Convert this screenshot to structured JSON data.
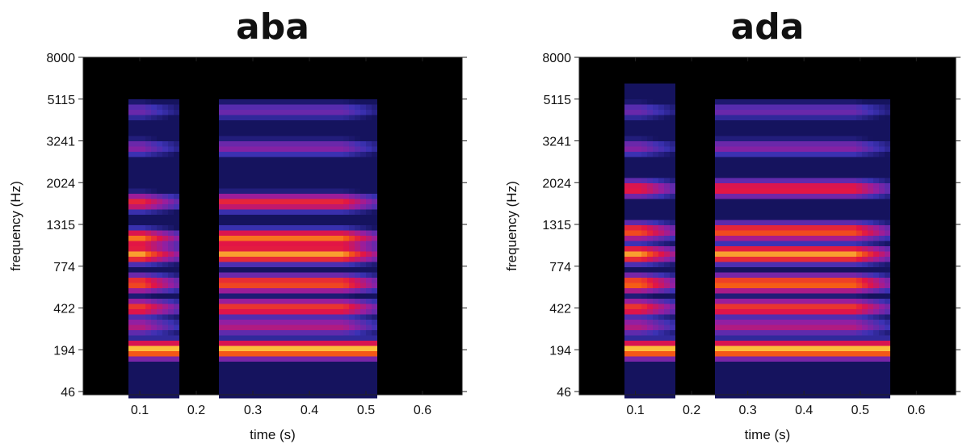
{
  "chart_data": [
    {
      "type": "heatmap",
      "title": "aba",
      "xlabel": "time (s)",
      "ylabel": "frequency (Hz)",
      "xlim": [
        0,
        0.67
      ],
      "xticks": [
        0.1,
        0.2,
        0.3,
        0.4,
        0.5,
        0.6
      ],
      "xtick_labels": [
        "0.1",
        "0.2",
        "0.3",
        "0.4",
        "0.5",
        "0.6"
      ],
      "ytick_labels": [
        "46",
        "194",
        "422",
        "774",
        "1315",
        "2024",
        "3241",
        "5115",
        "8000"
      ],
      "yscale": "non-linear",
      "colormap": "black-blue-purple-red-yellow",
      "background": "#000000",
      "segments": [
        {
          "t_start": 0.085,
          "t_end": 0.165,
          "f_max": 5115
        },
        {
          "t_start": 0.24,
          "t_end": 0.52,
          "f_max": 5115
        }
      ],
      "bands": [
        {
          "freq": 194,
          "intensity": 0.95
        },
        {
          "freq": 300,
          "intensity": 0.55
        },
        {
          "freq": 422,
          "intensity": 0.75
        },
        {
          "freq": 600,
          "intensity": 0.8
        },
        {
          "freq": 900,
          "intensity": 0.9
        },
        {
          "freq": 1100,
          "intensity": 0.85
        },
        {
          "freq": 1650,
          "intensity": 0.7
        },
        {
          "freq": 3000,
          "intensity": 0.45
        },
        {
          "freq": 4500,
          "intensity": 0.4
        }
      ]
    },
    {
      "type": "heatmap",
      "title": "ada",
      "xlabel": "time (s)",
      "ylabel": "frequency (Hz)",
      "xlim": [
        0,
        0.67
      ],
      "xticks": [
        0.1,
        0.2,
        0.3,
        0.4,
        0.5,
        0.6
      ],
      "xtick_labels": [
        "0.1",
        "0.2",
        "0.3",
        "0.4",
        "0.5",
        "0.6"
      ],
      "ytick_labels": [
        "46",
        "194",
        "422",
        "774",
        "1315",
        "2024",
        "3241",
        "5115",
        "8000"
      ],
      "yscale": "non-linear",
      "colormap": "black-blue-purple-red-yellow",
      "background": "#000000",
      "segments": [
        {
          "t_start": 0.085,
          "t_end": 0.17,
          "f_max": 6000
        },
        {
          "t_start": 0.24,
          "t_end": 0.55,
          "f_max": 5115
        }
      ],
      "bands": [
        {
          "freq": 194,
          "intensity": 0.95
        },
        {
          "freq": 300,
          "intensity": 0.55
        },
        {
          "freq": 422,
          "intensity": 0.75
        },
        {
          "freq": 600,
          "intensity": 0.85
        },
        {
          "freq": 900,
          "intensity": 0.9
        },
        {
          "freq": 1200,
          "intensity": 0.8
        },
        {
          "freq": 1900,
          "intensity": 0.7
        },
        {
          "freq": 3000,
          "intensity": 0.45
        },
        {
          "freq": 4500,
          "intensity": 0.4
        }
      ]
    }
  ]
}
